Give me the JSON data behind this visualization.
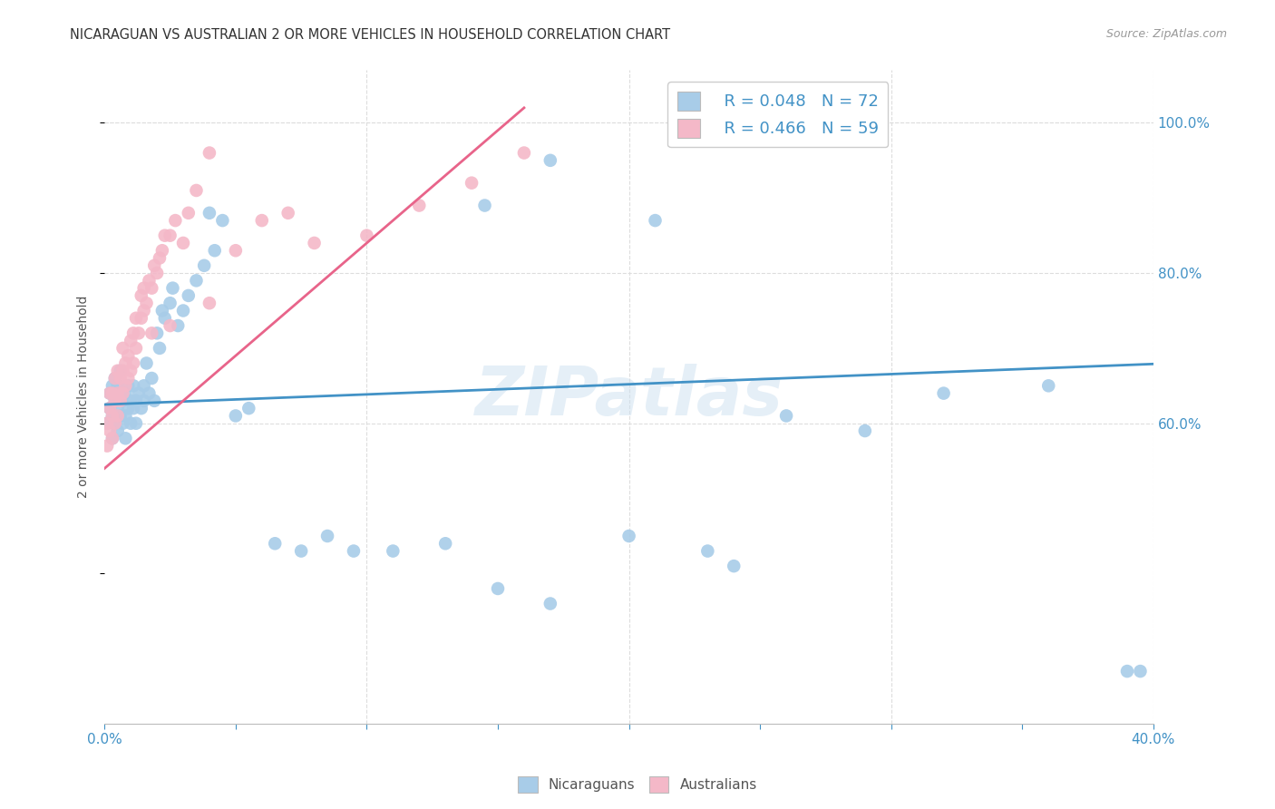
{
  "title": "NICARAGUAN VS AUSTRALIAN 2 OR MORE VEHICLES IN HOUSEHOLD CORRELATION CHART",
  "source": "Source: ZipAtlas.com",
  "ylabel": "2 or more Vehicles in Household",
  "watermark": "ZIPatlas",
  "blue_color": "#a8cce8",
  "pink_color": "#f4b8c8",
  "blue_line_color": "#4292c6",
  "pink_line_color": "#e8648a",
  "legend_blue_R": "R = 0.048",
  "legend_blue_N": "N = 72",
  "legend_pink_R": "R = 0.466",
  "legend_pink_N": "N = 59",
  "axis_color": "#4292c6",
  "xlim": [
    0.0,
    0.4
  ],
  "ylim": [
    0.2,
    1.07
  ],
  "blue_intercept": 0.625,
  "blue_slope": 0.135,
  "pink_intercept": 0.54,
  "pink_slope": 3.0,
  "nic_x": [
    0.001,
    0.002,
    0.002,
    0.003,
    0.003,
    0.003,
    0.004,
    0.004,
    0.004,
    0.005,
    0.005,
    0.005,
    0.006,
    0.006,
    0.006,
    0.007,
    0.007,
    0.008,
    0.008,
    0.008,
    0.009,
    0.009,
    0.01,
    0.01,
    0.011,
    0.011,
    0.012,
    0.012,
    0.013,
    0.014,
    0.015,
    0.015,
    0.016,
    0.017,
    0.018,
    0.019,
    0.02,
    0.021,
    0.022,
    0.023,
    0.025,
    0.026,
    0.028,
    0.03,
    0.032,
    0.035,
    0.038,
    0.04,
    0.042,
    0.045,
    0.05,
    0.055,
    0.065,
    0.075,
    0.085,
    0.095,
    0.11,
    0.13,
    0.15,
    0.17,
    0.2,
    0.23,
    0.26,
    0.29,
    0.32,
    0.36,
    0.39,
    0.395,
    0.21,
    0.24,
    0.17,
    0.145
  ],
  "nic_y": [
    0.6,
    0.62,
    0.64,
    0.58,
    0.61,
    0.65,
    0.6,
    0.63,
    0.66,
    0.59,
    0.62,
    0.65,
    0.61,
    0.64,
    0.67,
    0.6,
    0.63,
    0.58,
    0.61,
    0.64,
    0.62,
    0.65,
    0.6,
    0.63,
    0.62,
    0.65,
    0.6,
    0.63,
    0.64,
    0.62,
    0.63,
    0.65,
    0.68,
    0.64,
    0.66,
    0.63,
    0.72,
    0.7,
    0.75,
    0.74,
    0.76,
    0.78,
    0.73,
    0.75,
    0.77,
    0.79,
    0.81,
    0.88,
    0.83,
    0.87,
    0.61,
    0.62,
    0.44,
    0.43,
    0.45,
    0.43,
    0.43,
    0.44,
    0.38,
    0.36,
    0.45,
    0.43,
    0.61,
    0.59,
    0.64,
    0.65,
    0.27,
    0.27,
    0.87,
    0.41,
    0.95,
    0.89
  ],
  "aus_x": [
    0.001,
    0.001,
    0.002,
    0.002,
    0.002,
    0.003,
    0.003,
    0.003,
    0.004,
    0.004,
    0.004,
    0.005,
    0.005,
    0.005,
    0.006,
    0.006,
    0.007,
    0.007,
    0.007,
    0.008,
    0.008,
    0.009,
    0.009,
    0.01,
    0.01,
    0.011,
    0.011,
    0.012,
    0.012,
    0.013,
    0.014,
    0.014,
    0.015,
    0.015,
    0.016,
    0.017,
    0.018,
    0.019,
    0.02,
    0.021,
    0.022,
    0.023,
    0.025,
    0.027,
    0.03,
    0.032,
    0.035,
    0.04,
    0.05,
    0.06,
    0.07,
    0.08,
    0.1,
    0.12,
    0.14,
    0.16,
    0.04,
    0.025,
    0.018
  ],
  "aus_y": [
    0.57,
    0.6,
    0.59,
    0.62,
    0.64,
    0.58,
    0.61,
    0.64,
    0.6,
    0.63,
    0.66,
    0.61,
    0.64,
    0.67,
    0.63,
    0.66,
    0.64,
    0.67,
    0.7,
    0.65,
    0.68,
    0.66,
    0.69,
    0.67,
    0.71,
    0.68,
    0.72,
    0.7,
    0.74,
    0.72,
    0.74,
    0.77,
    0.75,
    0.78,
    0.76,
    0.79,
    0.78,
    0.81,
    0.8,
    0.82,
    0.83,
    0.85,
    0.85,
    0.87,
    0.84,
    0.88,
    0.91,
    0.96,
    0.83,
    0.87,
    0.88,
    0.84,
    0.85,
    0.89,
    0.92,
    0.96,
    0.76,
    0.73,
    0.72
  ]
}
